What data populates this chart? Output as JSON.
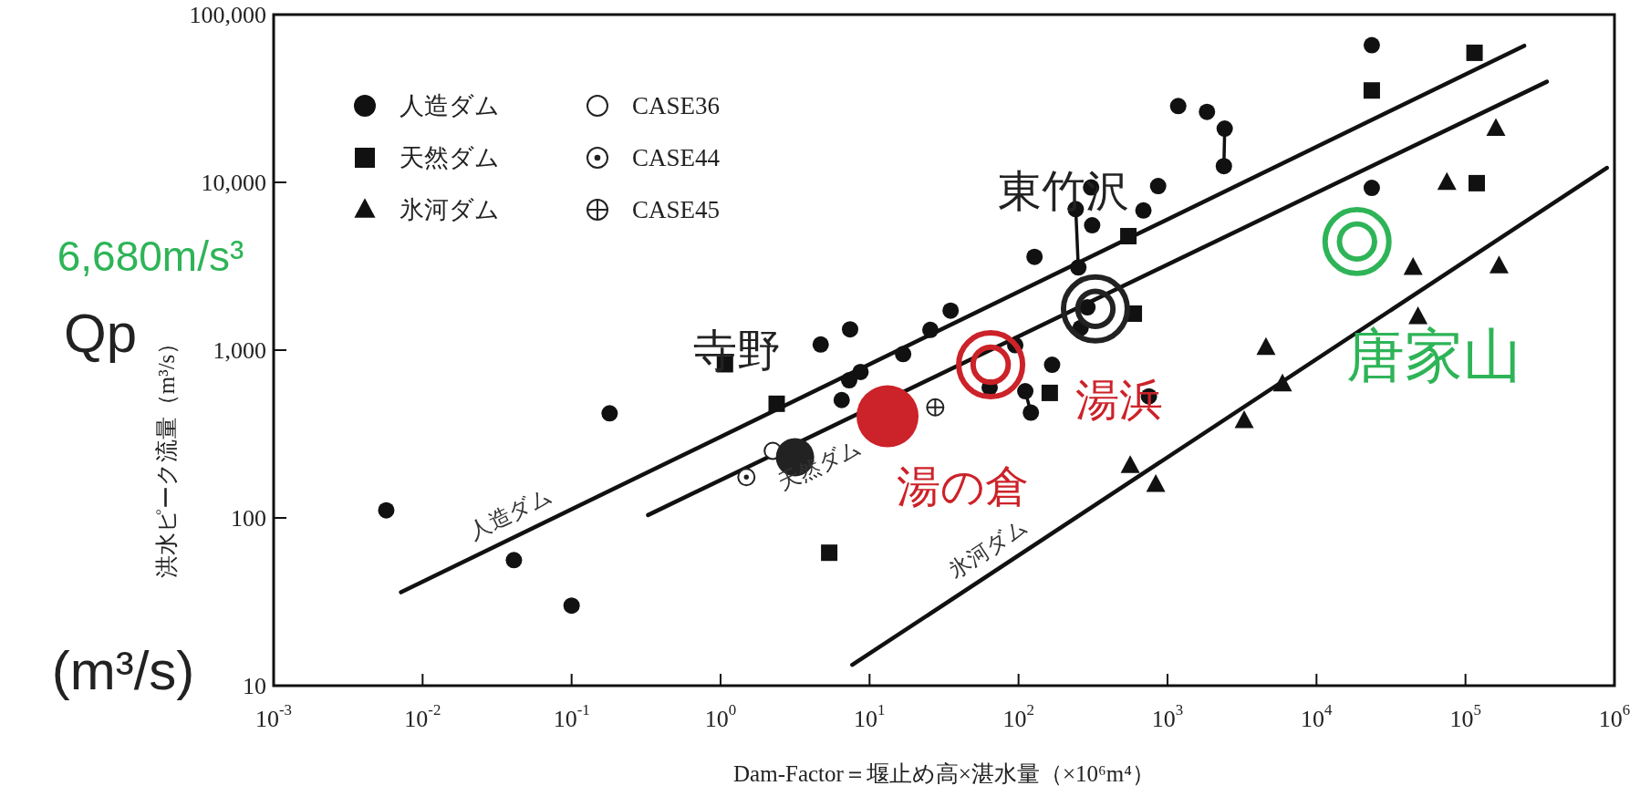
{
  "chart_data": {
    "type": "scatter",
    "xlabel": "Dam-Factor＝堰止め高×湛水量（×10⁶m⁴）",
    "ylabel": "洪水ピーク流量（m³/s）",
    "log": "xy",
    "legend": "top left",
    "xlim": [
      0.001,
      1000000
    ],
    "ylim": [
      10,
      100000
    ],
    "xticks": [
      {
        "value": 0.001,
        "label": "10$^{-3}$"
      },
      {
        "value": 0.01,
        "label": "10$^{-2}$"
      },
      {
        "value": 0.1,
        "label": "10$^{-1}$"
      },
      {
        "value": 1,
        "label": "10$^{0}$"
      },
      {
        "value": 10,
        "label": "10$^{1}$"
      },
      {
        "value": 100,
        "label": "10$^{2}$"
      },
      {
        "value": 1000,
        "label": "10$^{3}$"
      },
      {
        "value": 10000,
        "label": "10$^{4}$"
      },
      {
        "value": 100000,
        "label": "10$^{5}$"
      },
      {
        "value": 1000000,
        "label": "10$^{6}$"
      }
    ],
    "yticks": [
      10,
      100,
      {
        "value": 1000,
        "label": "1,000"
      },
      {
        "value": 10000,
        "label": "10,000"
      },
      {
        "value": 100000,
        "label": "100,000"
      }
    ],
    "series": [
      {
        "name": "人造ダム",
        "marker": "circle",
        "color": "#111111",
        "x": [
          0.0057,
          0.041,
          0.1,
          0.18,
          4.7,
          7.4,
          8.7,
          7.3,
          6.5,
          16.8,
          25.6,
          35,
          128,
          252,
          242,
          307,
          312,
          261,
          290,
          95,
          64,
          168,
          111,
          121,
          865,
          689,
          1180,
          1840,
          2420,
          2390,
          23500,
          23500,
          750
        ],
        "values": [
          111,
          56,
          30,
          420,
          1080,
          1330,
          741,
          661,
          504,
          948,
          1320,
          1720,
          3600,
          3110,
          6930,
          9330,
          5550,
          1355,
          1800,
          1070,
          599,
          818,
          569,
          424,
          9500,
          6800,
          28500,
          26300,
          20900,
          12500,
          65700,
          9270,
          530
        ]
      },
      {
        "name": "天然ダム",
        "marker": "square",
        "color": "#111111",
        "x": [
          1.07,
          2.38,
          5.36,
          162,
          546,
          594,
          23500,
          115000,
          119000
        ],
        "values": [
          824,
          479,
          62,
          556,
          4780,
          1650,
          35300,
          59200,
          9890
        ]
      },
      {
        "name": "氷河ダム",
        "marker": "triangle",
        "color": "#111111",
        "x": [
          562,
          834,
          3270,
          4580,
          5910,
          44500,
          48000,
          75000,
          160000,
          168000
        ],
        "values": [
          205,
          158,
          379,
          1035,
          627,
          3100,
          1580,
          9980,
          20900,
          3170
        ]
      },
      {
        "name": "CASE36",
        "marker": "circle-open",
        "color": "#222222",
        "x": [
          2.24
        ],
        "values": [
          251
        ]
      },
      {
        "name": "CASE44",
        "marker": "circle-dot",
        "color": "#222222",
        "x": [
          1.49
        ],
        "values": [
          175
        ]
      },
      {
        "name": "CASE45",
        "marker": "circle-cross",
        "color": "#222222",
        "x": [
          27.6
        ],
        "values": [
          456
        ]
      },
      {
        "marker": "circle",
        "color": "#222222",
        "x": [
          3.16
        ],
        "values": [
          230
        ]
      },
      {
        "marker": "circle",
        "color": "#cc2229",
        "x": [
          13.2
        ],
        "values": [
          403
        ]
      },
      {
        "marker": "circle-double",
        "color": "#cc2229",
        "x": [
          65
        ],
        "values": [
          818
        ]
      },
      {
        "marker": "circle-double",
        "color": "#222222",
        "x": [
          328
        ],
        "values": [
          1760
        ]
      },
      {
        "marker": "circle-double",
        "color": "#2eb457",
        "x": [
          18700
        ],
        "values": [
          4440
        ]
      },
      {
        "type": "line",
        "color": "#111111",
        "x": [
          0.00716,
          248000
        ],
        "values": [
          36,
          65200
        ]
      },
      {
        "type": "line",
        "color": "#111111",
        "x": [
          0.326,
          352000
        ],
        "values": [
          104,
          39800
        ]
      },
      {
        "type": "line",
        "color": "#111111",
        "x": [
          7.66,
          890000
        ],
        "values": [
          13.3,
          12200
        ]
      },
      {
        "type": "line",
        "color": "#111111",
        "x": [
          242,
          252
        ],
        "values": [
          6930,
          3110
        ]
      },
      {
        "type": "line",
        "color": "#111111",
        "x": [
          2420,
          2390
        ],
        "values": [
          20900,
          12500
        ]
      },
      {
        "type": "line",
        "color": "#111111",
        "x": [
          111,
          121
        ],
        "values": [
          569,
          424
        ]
      }
    ],
    "annotations": [
      {
        "text": "寺野",
        "x": 3.16,
        "y": 230
      },
      {
        "text": "湯の倉",
        "x": 13.2,
        "y": 403
      },
      {
        "text": "湯浜",
        "x": 65,
        "y": 818
      },
      {
        "text": "東竹沢",
        "x": 328,
        "y": 1760
      },
      {
        "text": "唐家山",
        "x": 18700,
        "y": 4440
      },
      {
        "text": "人造ダム",
        "x": 0.039,
        "y": 75
      },
      {
        "text": "天然ダム",
        "x": 4.66,
        "y": 325
      },
      {
        "text": "氷河ダム",
        "x": 73.8,
        "y": 50
      },
      "6,680m/s³",
      "Qp",
      "(m³/s)"
    ]
  }
}
